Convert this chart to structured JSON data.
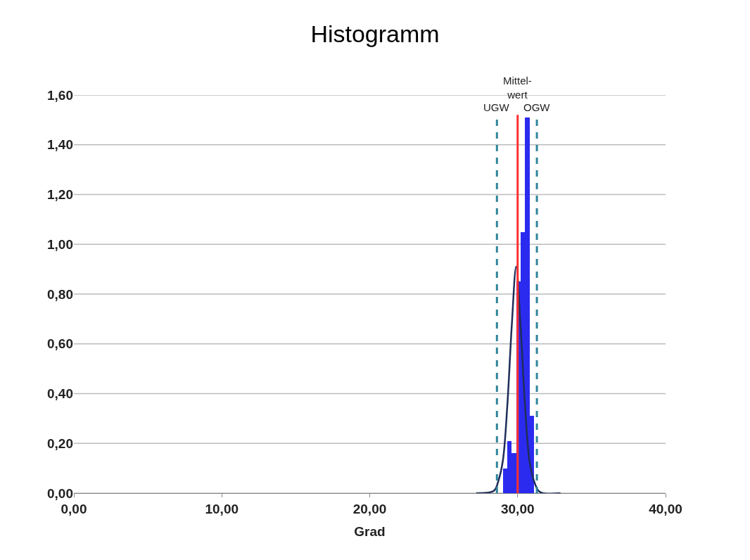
{
  "chart_data": {
    "type": "histogram",
    "title": "Histogramm",
    "xlabel": "Grad",
    "bins": [
      29.0,
      29.3,
      29.6,
      29.9,
      30.2,
      30.5,
      30.8,
      31.1
    ],
    "values": [
      0.1,
      0.21,
      0.16,
      0.85,
      1.05,
      1.51,
      0.31
    ],
    "color": "#2b2bf0",
    "series": [
      {
        "type": "line",
        "color": "#1f2d5a",
        "x": [
          27.2,
          28.4,
          28.7,
          29.0,
          29.3,
          29.6,
          29.9,
          30.2,
          30.5,
          30.8,
          31.1,
          31.4,
          31.7,
          32.9
        ],
        "values": [
          0,
          0.01,
          0.05,
          0.13,
          0.35,
          0.67,
          0.91,
          0.67,
          0.35,
          0.13,
          0.05,
          0.01,
          0,
          0
        ]
      }
    ],
    "ref_lines": [
      {
        "axis": "x",
        "value": 28.6,
        "label": "UGW",
        "color": "#31859c",
        "line_style": "dashed"
      },
      {
        "axis": "x",
        "value": 30.0,
        "label": "Mittel-\nwert",
        "color": "#ff3030",
        "line_style": "solid"
      },
      {
        "axis": "x",
        "value": 31.3,
        "label": "OGW",
        "color": "#31859c",
        "line_style": "dashed"
      }
    ],
    "xlim": [
      0,
      40
    ],
    "xticks": [
      {
        "value": 0,
        "label": "0,00"
      },
      {
        "value": 10,
        "label": "10,00"
      },
      {
        "value": 20,
        "label": "20,00"
      },
      {
        "value": 30,
        "label": "30,00"
      },
      {
        "value": 40,
        "label": "40,00"
      }
    ],
    "ylim": [
      0,
      1.6
    ],
    "yticks": [
      {
        "value": 0,
        "label": "0,00"
      },
      {
        "value": 0.2,
        "label": "0,20"
      },
      {
        "value": 0.4,
        "label": "0,40"
      },
      {
        "value": 0.6,
        "label": "0,60"
      },
      {
        "value": 0.8,
        "label": "0,80"
      },
      {
        "value": 1.0,
        "label": "1,00"
      },
      {
        "value": 1.2,
        "label": "1,20"
      },
      {
        "value": 1.4,
        "label": "1,40"
      },
      {
        "value": 1.6,
        "label": "1,60"
      }
    ],
    "grid": "y"
  }
}
